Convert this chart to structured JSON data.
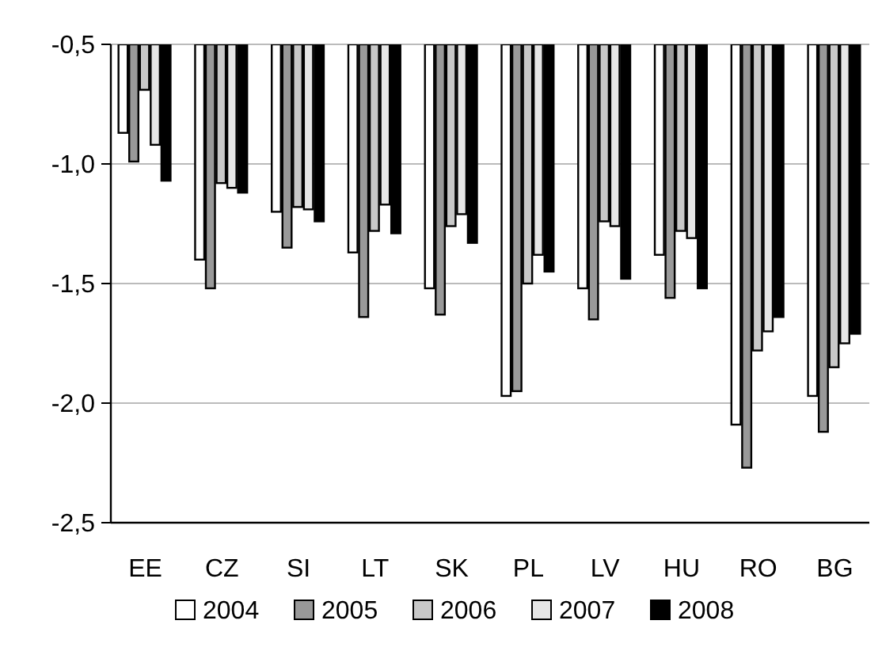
{
  "chart_data": {
    "type": "bar",
    "categories": [
      "EE",
      "CZ",
      "SI",
      "LT",
      "SK",
      "PL",
      "LV",
      "HU",
      "RO",
      "BG"
    ],
    "series": [
      {
        "name": "2004",
        "color": "#ffffff",
        "values": [
          -0.87,
          -1.4,
          -1.2,
          -1.37,
          -1.52,
          -1.97,
          -1.52,
          -1.38,
          -2.09,
          -1.97
        ]
      },
      {
        "name": "2005",
        "color": "#999999",
        "values": [
          -0.99,
          -1.52,
          -1.35,
          -1.64,
          -1.63,
          -1.95,
          -1.65,
          -1.56,
          -2.27,
          -2.12
        ]
      },
      {
        "name": "2006",
        "color": "#c8c8c8",
        "values": [
          -0.69,
          -1.08,
          -1.18,
          -1.28,
          -1.26,
          -1.5,
          -1.24,
          -1.28,
          -1.78,
          -1.85
        ]
      },
      {
        "name": "2007",
        "color": "#e6e6e6",
        "values": [
          -0.92,
          -1.1,
          -1.19,
          -1.17,
          -1.21,
          -1.38,
          -1.26,
          -1.31,
          -1.7,
          -1.75
        ]
      },
      {
        "name": "2008",
        "color": "#000000",
        "values": [
          -1.07,
          -1.12,
          -1.24,
          -1.29,
          -1.33,
          -1.45,
          -1.48,
          -1.52,
          -1.64,
          -1.71
        ]
      }
    ],
    "ylim": [
      -2.5,
      -0.5
    ],
    "yticks": [
      {
        "value": -2.5,
        "label": "-2,5"
      },
      {
        "value": -2.0,
        "label": "-2,0"
      },
      {
        "value": -1.5,
        "label": "-1,5"
      },
      {
        "value": -1.0,
        "label": "-1,0"
      },
      {
        "value": -0.5,
        "label": "-0,5"
      }
    ],
    "grid": "y",
    "legend": "bottom"
  }
}
